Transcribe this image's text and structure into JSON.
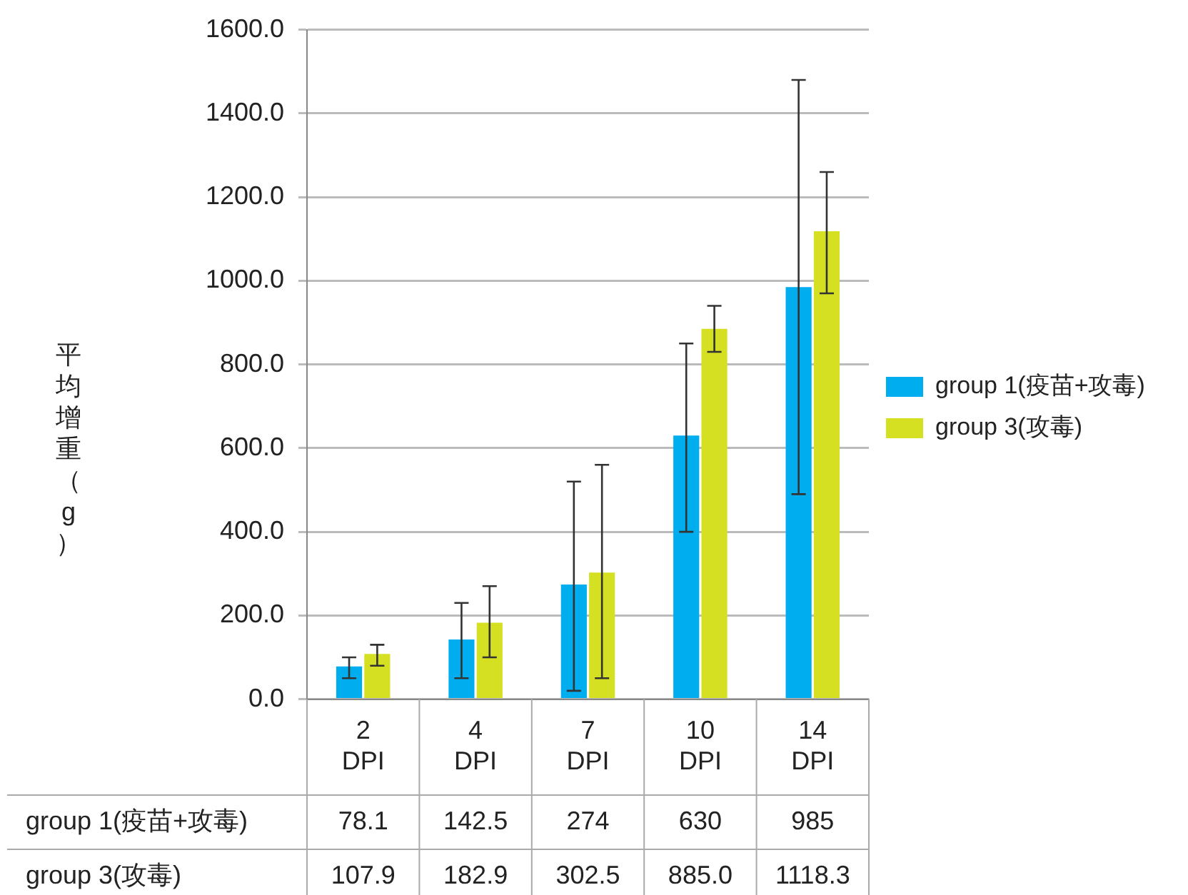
{
  "chart_data": {
    "type": "bar",
    "ylabel": "平均增重（g）",
    "categories": [
      "2 DPI",
      "4 DPI",
      "7 DPI",
      "10 DPI",
      "14 DPI"
    ],
    "series": [
      {
        "name": "group 1(疫苗+攻毒)",
        "color": "#00aeef",
        "values": [
          78.1,
          142.5,
          274,
          630,
          985
        ],
        "value_labels": [
          "78.1",
          "142.5",
          "274",
          "630",
          "985"
        ],
        "errors": [
          [
            50,
            100
          ],
          [
            50,
            230
          ],
          [
            20,
            520
          ],
          [
            400,
            850
          ],
          [
            490,
            1480
          ]
        ]
      },
      {
        "name": "group 3(攻毒)",
        "color": "#d4e021",
        "values": [
          107.9,
          182.9,
          302.5,
          885.0,
          1118.3
        ],
        "value_labels": [
          "107.9",
          "182.9",
          "302.5",
          "885.0",
          "1118.3"
        ],
        "errors": [
          [
            80,
            130
          ],
          [
            100,
            270
          ],
          [
            50,
            560
          ],
          [
            830,
            940
          ],
          [
            970,
            1260
          ]
        ]
      }
    ],
    "ylim": [
      0,
      1600
    ],
    "yticks": [
      {
        "value": 0,
        "label": "0.0"
      },
      {
        "value": 200,
        "label": "200.0"
      },
      {
        "value": 400,
        "label": "400.0"
      },
      {
        "value": 600,
        "label": "600.0"
      },
      {
        "value": 800,
        "label": "800.0"
      },
      {
        "value": 1000,
        "label": "1000.0"
      },
      {
        "value": 1200,
        "label": "1200.0"
      },
      {
        "value": 1400,
        "label": "1400.0"
      },
      {
        "value": 1600,
        "label": "1600.0"
      }
    ],
    "grid": "y",
    "legend": "right"
  }
}
